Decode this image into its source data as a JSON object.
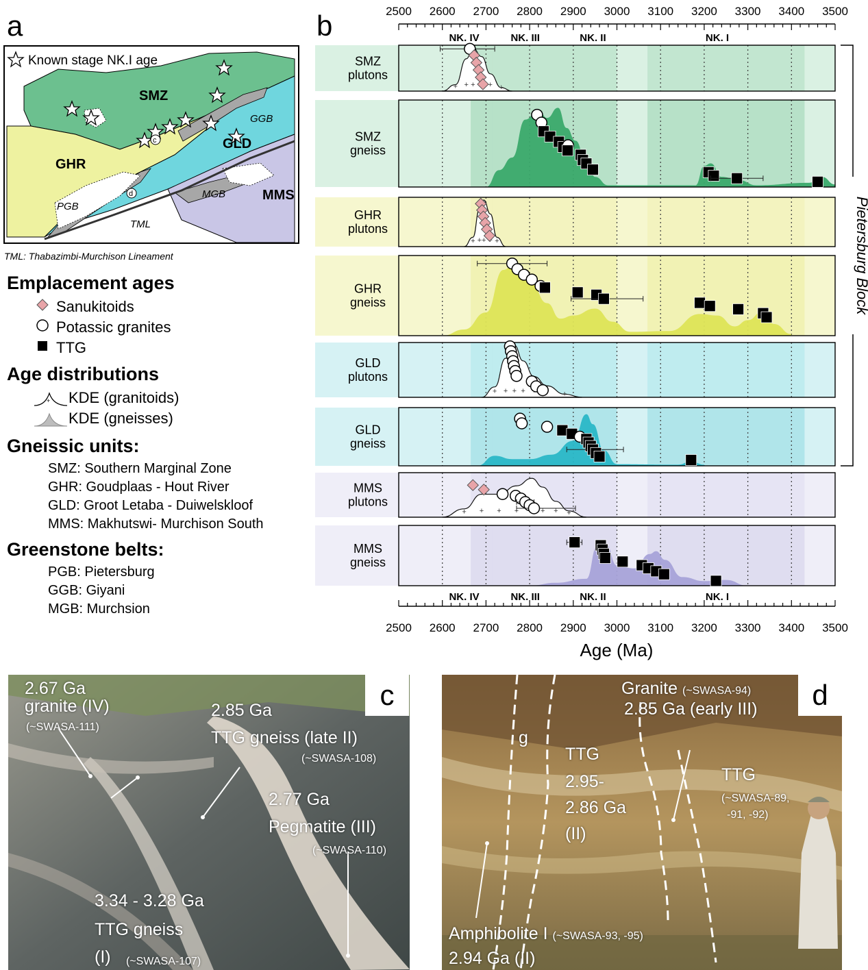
{
  "panels": {
    "a": "a",
    "b": "b",
    "c": "c",
    "d": "d"
  },
  "map": {
    "legend_star": "Known stage NK.I age",
    "labels": {
      "smz": "SMZ",
      "ghr": "GHR",
      "gld": "GLD",
      "mms": "MMS",
      "pgb": "PGB",
      "ggb": "GGB",
      "mgb": "MGB",
      "tml": "TML",
      "c": "c",
      "d": "d"
    },
    "colors": {
      "smz": "#6cc08f",
      "ghr": "#eef2a0",
      "gld": "#6fd6de",
      "mms": "#c9c6e6",
      "belt": "#a7a7a7"
    },
    "caption": "TML: Thabazimbi-Murchison Lineament"
  },
  "legend": {
    "emplacement_title": "Emplacement ages",
    "sanukitoids": "Sanukitoids",
    "potassic": "Potassic granites",
    "ttg": "TTG",
    "age_dist_title": "Age distributions",
    "kde_granitoids": "KDE (granitoids)",
    "kde_gneisses": "KDE (gneisses)",
    "gneissic_title": "Gneissic units:",
    "gneissic_units": [
      "SMZ: Southern Marginal Zone",
      "GHR: Goudplaas - Hout River",
      "GLD: Groot Letaba - Duiwelskloof",
      "MMS: Makhutswi-  Murchison South"
    ],
    "greenstone_title": "Greenstone belts:",
    "greenstone_belts": [
      "PGB: Pietersburg",
      "GGB: Giyani",
      "MGB: Murchsion"
    ]
  },
  "chart_data": {
    "type": "scatter",
    "xlabel": "Age (Ma)",
    "xlim": [
      2500,
      3500
    ],
    "xticks": [
      2500,
      2600,
      2700,
      2800,
      2900,
      3000,
      3100,
      3200,
      3300,
      3400,
      3500
    ],
    "stages": [
      {
        "label": "NK. IV",
        "x": 2650
      },
      {
        "label": "NK. III",
        "x": 2790
      },
      {
        "label": "NK. II",
        "x": 2945
      },
      {
        "label": "NK. I",
        "x": 3230
      }
    ],
    "stage_bands": [
      [
        2665,
        2715
      ],
      [
        2715,
        2885
      ],
      [
        2885,
        3000
      ],
      [
        3070,
        3430
      ]
    ],
    "bracket_label": "Pietersburg Block",
    "rows": [
      {
        "l1": "SMZ",
        "l2": "plutons",
        "kind": "plutons",
        "color": "#6cc08f",
        "bg": "#daf1e3",
        "points": [
          {
            "t": "c",
            "x": 2663,
            "y": 0.92,
            "e": [
              2595,
              2720
            ]
          },
          {
            "t": "d",
            "x": 2673,
            "y": 0.78
          },
          {
            "t": "d",
            "x": 2678,
            "y": 0.62
          },
          {
            "t": "d",
            "x": 2683,
            "y": 0.46
          },
          {
            "t": "d",
            "x": 2688,
            "y": 0.3
          },
          {
            "t": "d",
            "x": 2693,
            "y": 0.15
          }
        ],
        "kde": [
          [
            2600,
            0
          ],
          [
            2630,
            0.15
          ],
          [
            2655,
            0.75
          ],
          [
            2670,
            1
          ],
          [
            2690,
            0.8
          ],
          [
            2710,
            0.4
          ],
          [
            2735,
            0.08
          ],
          [
            2760,
            0
          ]
        ]
      },
      {
        "l1": "SMZ",
        "l2": "gneiss",
        "kind": "gneiss",
        "color": "#3aa96b",
        "bg": "#daf1e3",
        "points": [
          {
            "t": "c",
            "x": 2817,
            "y": 0.83
          },
          {
            "t": "c",
            "x": 2827,
            "y": 0.74
          },
          {
            "t": "s",
            "x": 2832,
            "y": 0.64
          },
          {
            "t": "s",
            "x": 2847,
            "y": 0.58
          },
          {
            "t": "s",
            "x": 2867,
            "y": 0.52
          },
          {
            "t": "s",
            "x": 2877,
            "y": 0.46
          },
          {
            "t": "c",
            "x": 2888,
            "y": 0.48
          },
          {
            "t": "s",
            "x": 2887,
            "y": 0.42
          },
          {
            "t": "s",
            "x": 2917,
            "y": 0.37
          },
          {
            "t": "s",
            "x": 2922,
            "y": 0.31
          },
          {
            "t": "s",
            "x": 2930,
            "y": 0.27
          },
          {
            "t": "s",
            "x": 2945,
            "y": 0.2
          },
          {
            "t": "s",
            "x": 3210,
            "y": 0.17
          },
          {
            "t": "s",
            "x": 3222,
            "y": 0.13
          },
          {
            "t": "s",
            "x": 3275,
            "y": 0.1,
            "e": [
              3215,
              3335
            ]
          },
          {
            "t": "s",
            "x": 3460,
            "y": 0.06
          }
        ],
        "kde": [
          [
            2700,
            0
          ],
          [
            2730,
            0.2
          ],
          [
            2760,
            0.35
          ],
          [
            2790,
            0.8
          ],
          [
            2820,
            0.92
          ],
          [
            2840,
            0.82
          ],
          [
            2865,
            0.94
          ],
          [
            2885,
            0.7
          ],
          [
            2905,
            0.55
          ],
          [
            2930,
            0.3
          ],
          [
            2950,
            0.12
          ],
          [
            2980,
            0.02
          ],
          [
            3180,
            0.02
          ],
          [
            3200,
            0.25
          ],
          [
            3215,
            0.28
          ],
          [
            3240,
            0.12
          ],
          [
            3280,
            0.08
          ],
          [
            3320,
            0.02
          ],
          [
            3440,
            0.05
          ],
          [
            3470,
            0.12
          ],
          [
            3500,
            0.03
          ]
        ]
      },
      {
        "l1": "GHR",
        "l2": "plutons",
        "kind": "plutons",
        "color": "#e6e987",
        "bg": "#f6f7cf",
        "points": [
          {
            "t": "d",
            "x": 2688,
            "y": 0.87
          },
          {
            "t": "d",
            "x": 2691,
            "y": 0.74
          },
          {
            "t": "d",
            "x": 2694,
            "y": 0.61
          },
          {
            "t": "d",
            "x": 2698,
            "y": 0.48
          },
          {
            "t": "d",
            "x": 2702,
            "y": 0.35
          },
          {
            "t": "d",
            "x": 2708,
            "y": 0.22
          }
        ],
        "kde": [
          [
            2650,
            0
          ],
          [
            2670,
            0.2
          ],
          [
            2685,
            0.8
          ],
          [
            2695,
            1
          ],
          [
            2710,
            0.7
          ],
          [
            2725,
            0.2
          ],
          [
            2745,
            0
          ]
        ]
      },
      {
        "l1": "GHR",
        "l2": "gneiss",
        "kind": "gneiss",
        "color": "#dde457",
        "bg": "#f6f7cf",
        "points": [
          {
            "t": "c",
            "x": 2760,
            "y": 0.9,
            "e": [
              2680,
              2840
            ]
          },
          {
            "t": "c",
            "x": 2772,
            "y": 0.83
          },
          {
            "t": "c",
            "x": 2787,
            "y": 0.76
          },
          {
            "t": "c",
            "x": 2805,
            "y": 0.7
          },
          {
            "t": "c",
            "x": 2825,
            "y": 0.62
          },
          {
            "t": "s",
            "x": 2835,
            "y": 0.6
          },
          {
            "t": "s",
            "x": 2910,
            "y": 0.54
          },
          {
            "t": "s",
            "x": 2953,
            "y": 0.51
          },
          {
            "t": "s",
            "x": 2970,
            "y": 0.46,
            "e": [
              2895,
              3060
            ]
          },
          {
            "t": "s",
            "x": 3190,
            "y": 0.41
          },
          {
            "t": "s",
            "x": 3213,
            "y": 0.37
          },
          {
            "t": "s",
            "x": 3278,
            "y": 0.33
          },
          {
            "t": "s",
            "x": 3335,
            "y": 0.28
          },
          {
            "t": "s",
            "x": 3343,
            "y": 0.23
          }
        ],
        "kde": [
          [
            2600,
            0
          ],
          [
            2650,
            0.08
          ],
          [
            2700,
            0.3
          ],
          [
            2740,
            0.85
          ],
          [
            2765,
            0.93
          ],
          [
            2800,
            0.72
          ],
          [
            2840,
            0.42
          ],
          [
            2870,
            0.22
          ],
          [
            2900,
            0.26
          ],
          [
            2950,
            0.35
          ],
          [
            2990,
            0.18
          ],
          [
            3030,
            0.05
          ],
          [
            3120,
            0.06
          ],
          [
            3190,
            0.28
          ],
          [
            3230,
            0.26
          ],
          [
            3270,
            0.12
          ],
          [
            3300,
            0.2
          ],
          [
            3335,
            0.32
          ],
          [
            3360,
            0.15
          ],
          [
            3400,
            0.02
          ]
        ]
      },
      {
        "l1": "GLD",
        "l2": "plutons",
        "kind": "plutons",
        "color": "#6fd6de",
        "bg": "#d6f2f4",
        "points": [
          {
            "t": "c",
            "x": 2755,
            "y": 0.93
          },
          {
            "t": "c",
            "x": 2757,
            "y": 0.84
          },
          {
            "t": "c",
            "x": 2760,
            "y": 0.75
          },
          {
            "t": "c",
            "x": 2762,
            "y": 0.66
          },
          {
            "t": "c",
            "x": 2764,
            "y": 0.57
          },
          {
            "t": "c",
            "x": 2767,
            "y": 0.48
          },
          {
            "t": "c",
            "x": 2770,
            "y": 0.39
          },
          {
            "t": "c",
            "x": 2805,
            "y": 0.29
          },
          {
            "t": "c",
            "x": 2815,
            "y": 0.2
          },
          {
            "t": "c",
            "x": 2830,
            "y": 0.13
          }
        ],
        "kde": [
          [
            2690,
            0
          ],
          [
            2720,
            0.2
          ],
          [
            2745,
            0.75
          ],
          [
            2765,
            1
          ],
          [
            2785,
            0.7
          ],
          [
            2810,
            0.4
          ],
          [
            2840,
            0.22
          ],
          [
            2880,
            0.06
          ],
          [
            2920,
            0
          ]
        ]
      },
      {
        "l1": "GLD",
        "l2": "gneiss",
        "kind": "gneiss",
        "color": "#2ab7c7",
        "bg": "#d6f2f4",
        "points": [
          {
            "t": "c",
            "x": 2778,
            "y": 0.81
          },
          {
            "t": "c",
            "x": 2782,
            "y": 0.73
          },
          {
            "t": "c",
            "x": 2840,
            "y": 0.67
          },
          {
            "t": "s",
            "x": 2875,
            "y": 0.61
          },
          {
            "t": "s",
            "x": 2897,
            "y": 0.55
          },
          {
            "t": "c",
            "x": 2915,
            "y": 0.5
          },
          {
            "t": "s",
            "x": 2930,
            "y": 0.46
          },
          {
            "t": "s",
            "x": 2935,
            "y": 0.4
          },
          {
            "t": "s",
            "x": 2940,
            "y": 0.34
          },
          {
            "t": "s",
            "x": 2945,
            "y": 0.28,
            "e": [
              2885,
              3015
            ]
          },
          {
            "t": "s",
            "x": 2952,
            "y": 0.22
          },
          {
            "t": "s",
            "x": 2960,
            "y": 0.16
          },
          {
            "t": "s",
            "x": 3170,
            "y": 0.1
          }
        ],
        "kde": [
          [
            2680,
            0
          ],
          [
            2720,
            0.18
          ],
          [
            2760,
            0.12
          ],
          [
            2800,
            0.12
          ],
          [
            2850,
            0.2
          ],
          [
            2900,
            0.45
          ],
          [
            2930,
            0.93
          ],
          [
            2945,
            0.75
          ],
          [
            2970,
            0.28
          ],
          [
            3000,
            0.03
          ],
          [
            3140,
            0.02
          ],
          [
            3170,
            0.08
          ],
          [
            3200,
            0.02
          ]
        ]
      },
      {
        "l1": "MMS",
        "l2": "plutons",
        "kind": "plutons",
        "color": "#c9c6e6",
        "bg": "#efeef8",
        "points": [
          {
            "t": "d",
            "x": 2670,
            "y": 0.72
          },
          {
            "t": "d",
            "x": 2695,
            "y": 0.62
          },
          {
            "t": "c",
            "x": 2738,
            "y": 0.52
          },
          {
            "t": "c",
            "x": 2768,
            "y": 0.48
          },
          {
            "t": "c",
            "x": 2780,
            "y": 0.42
          },
          {
            "t": "c",
            "x": 2790,
            "y": 0.34,
            "e": [
              2770,
              2810
            ]
          },
          {
            "t": "c",
            "x": 2800,
            "y": 0.27
          },
          {
            "t": "c",
            "x": 2810,
            "y": 0.2,
            "e": [
              2770,
              2905
            ]
          }
        ],
        "kde": [
          [
            2600,
            0
          ],
          [
            2650,
            0.2
          ],
          [
            2690,
            0.55
          ],
          [
            2730,
            0.55
          ],
          [
            2770,
            0.75
          ],
          [
            2805,
            0.93
          ],
          [
            2830,
            0.72
          ],
          [
            2860,
            0.38
          ],
          [
            2890,
            0.15
          ],
          [
            2930,
            0
          ]
        ]
      },
      {
        "l1": "MMS",
        "l2": "gneiss",
        "kind": "gneiss",
        "color": "#a7a2d8",
        "bg": "#efeef8",
        "points": [
          {
            "t": "s",
            "x": 2903,
            "y": 0.72,
            "e": [
              2885,
              2920
            ]
          },
          {
            "t": "s",
            "x": 2963,
            "y": 0.67
          },
          {
            "t": "s",
            "x": 2967,
            "y": 0.6
          },
          {
            "t": "s",
            "x": 2970,
            "y": 0.53
          },
          {
            "t": "s",
            "x": 2973,
            "y": 0.46
          },
          {
            "t": "s",
            "x": 3013,
            "y": 0.4
          },
          {
            "t": "s",
            "x": 3057,
            "y": 0.34
          },
          {
            "t": "s",
            "x": 3072,
            "y": 0.29
          },
          {
            "t": "s",
            "x": 3090,
            "y": 0.24
          },
          {
            "t": "s",
            "x": 3108,
            "y": 0.19
          },
          {
            "t": "s",
            "x": 3227,
            "y": 0.08
          }
        ],
        "kde": [
          [
            2800,
            0
          ],
          [
            2860,
            0.05
          ],
          [
            2930,
            0.12
          ],
          [
            2955,
            0.7
          ],
          [
            2975,
            0.72
          ],
          [
            3000,
            0.35
          ],
          [
            3040,
            0.3
          ],
          [
            3075,
            0.55
          ],
          [
            3090,
            0.6
          ],
          [
            3110,
            0.45
          ],
          [
            3150,
            0.15
          ],
          [
            3200,
            0.08
          ],
          [
            3250,
            0.1
          ],
          [
            3300,
            0
          ]
        ]
      }
    ]
  },
  "photo_c": {
    "l1": "2.67 Ga",
    "l2": "granite (IV)",
    "l3": "(~SWASA-111)",
    "l4": "2.85 Ga",
    "l5": "TTG gneiss (late II)",
    "l6": "(~SWASA-108)",
    "l7": "2.77 Ga",
    "l8": "Pegmatite (III)",
    "l9": "(~SWASA-110)",
    "l10": "3.34 - 3.28 Ga",
    "l11": "TTG gneiss",
    "l12": "(I)",
    "l13": "(~SWASA-107)"
  },
  "photo_d": {
    "g": "g",
    "l1": "Granite",
    "l1s": "(~SWASA-94)",
    "l2": "2.85 Ga (early III)",
    "l3": "TTG",
    "l4": "2.95-",
    "l5": "2.86 Ga",
    "l6": "(II)",
    "l7": "TTG",
    "l8": "(~SWASA-89,",
    "l9": "-91, -92)",
    "l10": "Amphibolite I",
    "l10s": "(~SWASA-93, -95)",
    "l11": "2.94 Ga (II)"
  }
}
